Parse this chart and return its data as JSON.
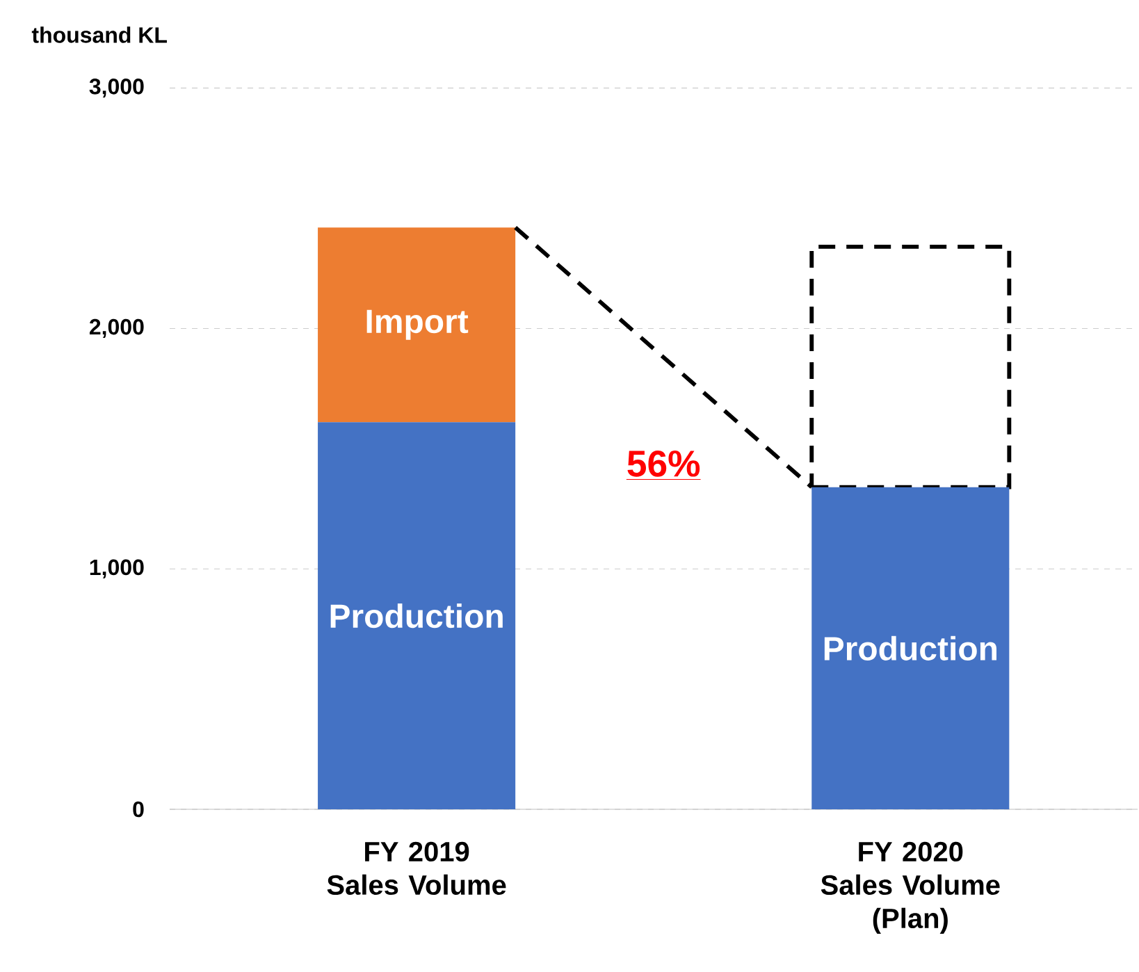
{
  "chart_data": {
    "type": "bar",
    "stacked": true,
    "ylabel": "thousand KL",
    "categories": [
      "FY 2019 Sales Volume",
      "FY 2020 Sales Volume (Plan)"
    ],
    "series": [
      {
        "name": "Production",
        "color": "#4472c4",
        "values": [
          1610,
          1340
        ]
      },
      {
        "name": "Import",
        "color": "#ed7d31",
        "values": [
          810,
          null
        ]
      },
      {
        "color": "#000000",
        "line_style": "dashed",
        "values": [
          null,
          1000
        ]
      }
    ],
    "ylim": [
      0,
      3000
    ],
    "yticks": [
      {
        "value": 0,
        "label": "0"
      },
      {
        "value": 1000,
        "label": "1,000"
      },
      {
        "value": 2000,
        "label": "2,000"
      },
      {
        "value": 3000,
        "label": "3,000"
      }
    ],
    "grid": "y",
    "legend": false,
    "annotations": [
      "56%"
    ]
  }
}
